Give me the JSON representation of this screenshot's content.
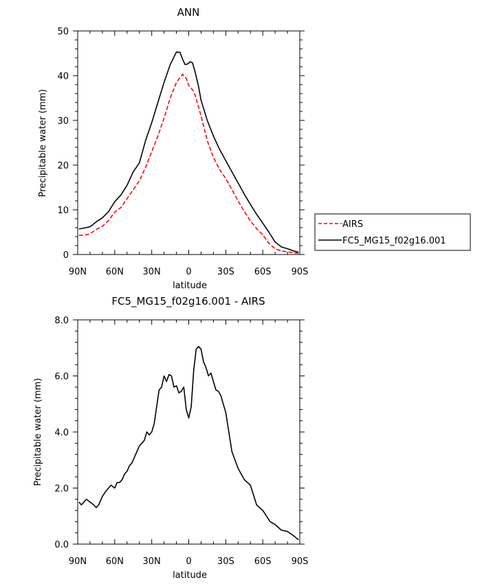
{
  "chart_data": [
    {
      "type": "line",
      "title": "ANN",
      "xlabel": "latitude",
      "ylabel": "Precipitable water (mm)",
      "xlim": [
        90,
        -90
      ],
      "ylim": [
        0,
        50
      ],
      "xticks": [
        90,
        60,
        30,
        0,
        -30,
        -60,
        -90
      ],
      "xtick_labels": [
        "90N",
        "60N",
        "30N",
        "0",
        "30S",
        "60S",
        "90S"
      ],
      "yticks": [
        0,
        10,
        20,
        30,
        40,
        50
      ],
      "ytick_labels": [
        "0",
        "10",
        "20",
        "30",
        "40",
        "50"
      ],
      "legend_position": "right, outside plot",
      "series": [
        {
          "name": "AIRS",
          "color": "#ff0000",
          "style": "dashed",
          "x": [
            89,
            85,
            80,
            75,
            70,
            65,
            60,
            55,
            50,
            45,
            40,
            35,
            30,
            25,
            20,
            15,
            10,
            5,
            2,
            0,
            -3,
            -5,
            -10,
            -15,
            -20,
            -25,
            -30,
            -35,
            -40,
            -45,
            -50,
            -55,
            -60,
            -65,
            -70,
            -75,
            -80,
            -85,
            -89
          ],
          "values": [
            4.3,
            4.3,
            4.6,
            5.6,
            6.3,
            7.6,
            9.5,
            10.5,
            12.5,
            14.5,
            16.5,
            19.5,
            23,
            26.5,
            30.5,
            35,
            38.5,
            40.3,
            39.4,
            37.8,
            36.9,
            35.8,
            31,
            25.5,
            21.7,
            19,
            17,
            14.5,
            12,
            9.6,
            7.5,
            5.8,
            4.4,
            2.5,
            1.3,
            0.8,
            0.6,
            0.4,
            0.3
          ]
        },
        {
          "name": "FC5_MG15_f02g16.001",
          "color": "#000000",
          "style": "solid",
          "x": [
            89,
            85,
            80,
            75,
            70,
            65,
            60,
            55,
            50,
            45,
            40,
            35,
            30,
            25,
            20,
            15,
            10,
            7,
            5,
            3,
            1,
            -1,
            -3,
            -5,
            -8,
            -10,
            -15,
            -20,
            -25,
            -30,
            -35,
            -40,
            -45,
            -50,
            -55,
            -60,
            -65,
            -70,
            -75,
            -80,
            -85,
            -89
          ],
          "values": [
            5.7,
            5.9,
            6.2,
            7.3,
            8.2,
            9.6,
            11.8,
            13.3,
            15.5,
            18.5,
            20.5,
            25.5,
            29.5,
            34,
            38.5,
            42.5,
            45.3,
            45.2,
            43.7,
            42.5,
            42.6,
            43.1,
            42.9,
            41,
            37.5,
            34.5,
            30,
            26.5,
            23.5,
            21,
            18.5,
            16,
            13.5,
            11.2,
            9,
            7,
            5,
            2.8,
            1.7,
            1.3,
            0.8,
            0.5
          ]
        }
      ]
    },
    {
      "type": "line",
      "title": "FC5_MG15_f02g16.001 - AIRS",
      "xlabel": "latitude",
      "ylabel": "Precipitable water (mm)",
      "xlim": [
        90,
        -90
      ],
      "ylim": [
        0,
        8
      ],
      "xticks": [
        90,
        60,
        30,
        0,
        -30,
        -60,
        -90
      ],
      "xtick_labels": [
        "90N",
        "60N",
        "30N",
        "0",
        "30S",
        "60S",
        "90S"
      ],
      "yticks": [
        0,
        2,
        4,
        6,
        8
      ],
      "ytick_labels": [
        "0.0",
        "2.0",
        "4.0",
        "6.0",
        "8.0"
      ],
      "series": [
        {
          "name": "FC5_MG15_f02g16.001 - AIRS",
          "color": "#000000",
          "style": "solid",
          "x": [
            89,
            87,
            85,
            83,
            80,
            77,
            75,
            73,
            70,
            67,
            65,
            63,
            60,
            58,
            56,
            54,
            52,
            50,
            48,
            46,
            44,
            42,
            40,
            38,
            36,
            34,
            32,
            30,
            28,
            26,
            24,
            22,
            20,
            18,
            16,
            14,
            12,
            10,
            8,
            6,
            4,
            2,
            0,
            -2,
            -4,
            -6,
            -8,
            -10,
            -12,
            -14,
            -16,
            -18,
            -20,
            -22,
            -24,
            -26,
            -28,
            -30,
            -35,
            -40,
            -45,
            -50,
            -55,
            -60,
            -63,
            -66,
            -70,
            -75,
            -80,
            -85,
            -89
          ],
          "values": [
            1.5,
            1.4,
            1.5,
            1.6,
            1.5,
            1.4,
            1.3,
            1.4,
            1.7,
            1.9,
            2.0,
            2.1,
            2.0,
            2.2,
            2.2,
            2.3,
            2.5,
            2.6,
            2.8,
            2.9,
            3.1,
            3.3,
            3.5,
            3.6,
            3.7,
            4.0,
            3.9,
            4.0,
            4.3,
            4.9,
            5.5,
            5.6,
            6.0,
            5.8,
            6.05,
            6.0,
            5.6,
            5.65,
            5.4,
            5.45,
            5.6,
            4.8,
            4.5,
            4.9,
            6.2,
            6.95,
            7.05,
            6.95,
            6.5,
            6.3,
            6.0,
            6.1,
            5.8,
            5.5,
            5.45,
            5.3,
            5.0,
            4.7,
            3.3,
            2.7,
            2.3,
            2.1,
            1.4,
            1.2,
            1.0,
            0.8,
            0.7,
            0.5,
            0.45,
            0.3,
            0.15
          ]
        }
      ]
    }
  ]
}
